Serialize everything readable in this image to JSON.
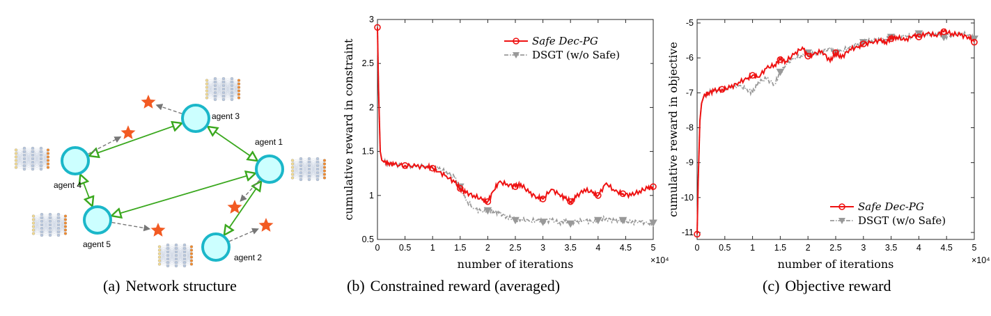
{
  "panel_a": {
    "caption_label": "(a)",
    "caption_text": "Network structure",
    "agents": [
      {
        "id": "agent-1",
        "label": "agent 1"
      },
      {
        "id": "agent-2",
        "label": "agent 2"
      },
      {
        "id": "agent-3",
        "label": "agent 3"
      },
      {
        "id": "agent-4",
        "label": "agent 4"
      },
      {
        "id": "agent-5",
        "label": "agent 5"
      }
    ],
    "colors": {
      "agent_fill": "#ccffff",
      "agent_stroke": "#1bb7c9",
      "link": "#3aa81e",
      "goal": "#f25a22",
      "dashed": "#777777"
    }
  },
  "panel_b": {
    "caption_label": "(b)",
    "caption_text": "Constrained reward (averaged)"
  },
  "panel_c": {
    "caption_label": "(c)",
    "caption_text": "Objective reward"
  },
  "chart_data": [
    {
      "type": "line",
      "xlabel": "number of iterations",
      "ylabel": "cumulative reward in constraint",
      "x_multiplier": "×10⁴",
      "xlim": [
        0,
        5
      ],
      "ylim": [
        0.5,
        3
      ],
      "xticks": [
        "0",
        "0.5",
        "1",
        "1.5",
        "2",
        "2.5",
        "3",
        "3.5",
        "4",
        "4.5",
        "5"
      ],
      "yticks": [
        "0.5",
        "1",
        "1.5",
        "2",
        "2.5",
        "3"
      ],
      "legend_position": "top-right",
      "series": [
        {
          "name": "Safe Dec-PG",
          "color": "#ee1111",
          "marker": "circle",
          "x": [
            0,
            0.02,
            0.05,
            0.08,
            0.12,
            0.2,
            0.3,
            0.5,
            0.7,
            0.9,
            1.0,
            1.1,
            1.25,
            1.4,
            1.5,
            1.6,
            1.75,
            1.9,
            2.0,
            2.1,
            2.2,
            2.35,
            2.5,
            2.6,
            2.75,
            2.9,
            3.0,
            3.15,
            3.3,
            3.4,
            3.5,
            3.6,
            3.75,
            3.9,
            4.0,
            4.15,
            4.3,
            4.45,
            4.6,
            4.75,
            4.9,
            5.0
          ],
          "y": [
            2.91,
            2.2,
            1.5,
            1.4,
            1.38,
            1.37,
            1.35,
            1.34,
            1.33,
            1.33,
            1.31,
            1.27,
            1.22,
            1.15,
            1.08,
            1.03,
            1.0,
            0.95,
            0.93,
            1.05,
            1.15,
            1.13,
            1.1,
            1.13,
            1.03,
            0.98,
            0.96,
            1.07,
            1.01,
            0.97,
            0.93,
            0.98,
            1.07,
            1.03,
            1.0,
            1.14,
            1.05,
            1.02,
            1.0,
            1.05,
            1.08,
            1.1
          ]
        },
        {
          "name": "DSGT (w/o Safe)",
          "color": "#999999",
          "marker": "triangle-down",
          "x": [
            0,
            0.02,
            0.05,
            0.08,
            0.12,
            0.2,
            0.3,
            0.5,
            0.7,
            0.9,
            1.0,
            1.1,
            1.25,
            1.4,
            1.5,
            1.6,
            1.75,
            1.9,
            2.0,
            2.1,
            2.2,
            2.35,
            2.5,
            2.6,
            2.75,
            2.9,
            3.0,
            3.15,
            3.3,
            3.4,
            3.5,
            3.6,
            3.75,
            3.9,
            4.0,
            4.15,
            4.3,
            4.45,
            4.6,
            4.75,
            4.9,
            5.0
          ],
          "y": [
            2.91,
            2.2,
            1.5,
            1.4,
            1.38,
            1.37,
            1.35,
            1.34,
            1.33,
            1.33,
            1.32,
            1.3,
            1.27,
            1.2,
            1.1,
            0.95,
            0.85,
            0.82,
            0.83,
            0.82,
            0.8,
            0.76,
            0.72,
            0.73,
            0.71,
            0.72,
            0.7,
            0.72,
            0.69,
            0.71,
            0.68,
            0.7,
            0.72,
            0.7,
            0.72,
            0.74,
            0.71,
            0.72,
            0.69,
            0.71,
            0.68,
            0.69
          ]
        }
      ]
    },
    {
      "type": "line",
      "xlabel": "number of iterations",
      "ylabel": "cumulative reward in objective",
      "x_multiplier": "×10⁴",
      "xlim": [
        0,
        5
      ],
      "ylim": [
        -11.2,
        -4.9
      ],
      "xticks": [
        "0",
        "0.5",
        "1",
        "1.5",
        "2",
        "2.5",
        "3",
        "3.5",
        "4",
        "4.5",
        "5"
      ],
      "yticks": [
        "-11",
        "-10",
        "-9",
        "-8",
        "-7",
        "-6",
        "-5"
      ],
      "legend_position": "bottom-right",
      "series": [
        {
          "name": "Safe Dec-PG",
          "color": "#ee1111",
          "marker": "circle",
          "x": [
            0,
            0.02,
            0.05,
            0.08,
            0.12,
            0.2,
            0.3,
            0.45,
            0.6,
            0.75,
            0.9,
            1.0,
            1.1,
            1.25,
            1.4,
            1.5,
            1.6,
            1.75,
            1.9,
            2.0,
            2.1,
            2.25,
            2.4,
            2.5,
            2.6,
            2.75,
            2.9,
            3.0,
            3.15,
            3.3,
            3.4,
            3.5,
            3.6,
            3.75,
            3.9,
            4.0,
            4.15,
            4.3,
            4.45,
            4.6,
            4.75,
            4.9,
            5.0
          ],
          "y": [
            -11.05,
            -9.5,
            -7.8,
            -7.3,
            -7.1,
            -7.0,
            -6.95,
            -6.9,
            -6.85,
            -6.7,
            -6.6,
            -6.5,
            -6.55,
            -6.3,
            -6.2,
            -6.05,
            -6.1,
            -5.9,
            -5.7,
            -5.95,
            -5.9,
            -5.8,
            -6.1,
            -5.85,
            -6.0,
            -5.75,
            -5.7,
            -5.6,
            -5.55,
            -5.5,
            -5.55,
            -5.45,
            -5.4,
            -5.5,
            -5.35,
            -5.4,
            -5.3,
            -5.35,
            -5.25,
            -5.3,
            -5.35,
            -5.4,
            -5.55
          ]
        },
        {
          "name": "DSGT (w/o Safe)",
          "color": "#999999",
          "marker": "triangle-down",
          "x": [
            0,
            0.02,
            0.05,
            0.08,
            0.12,
            0.2,
            0.3,
            0.45,
            0.6,
            0.75,
            0.9,
            1.0,
            1.1,
            1.25,
            1.4,
            1.5,
            1.6,
            1.75,
            1.9,
            2.0,
            2.1,
            2.25,
            2.4,
            2.5,
            2.6,
            2.75,
            2.9,
            3.0,
            3.15,
            3.3,
            3.4,
            3.5,
            3.6,
            3.75,
            3.9,
            4.0,
            4.15,
            4.3,
            4.45,
            4.6,
            4.75,
            4.9,
            5.0
          ],
          "y": [
            -11.05,
            -9.5,
            -7.8,
            -7.3,
            -7.1,
            -7.0,
            -6.95,
            -6.9,
            -6.85,
            -6.8,
            -6.9,
            -7.0,
            -6.7,
            -6.6,
            -6.75,
            -6.4,
            -6.2,
            -6.0,
            -5.95,
            -5.85,
            -5.9,
            -5.8,
            -5.75,
            -5.85,
            -5.8,
            -5.7,
            -5.6,
            -5.55,
            -5.5,
            -5.5,
            -5.45,
            -5.4,
            -5.45,
            -5.35,
            -5.4,
            -5.3,
            -5.35,
            -5.3,
            -5.4,
            -5.35,
            -5.3,
            -5.35,
            -5.45
          ]
        }
      ]
    }
  ]
}
